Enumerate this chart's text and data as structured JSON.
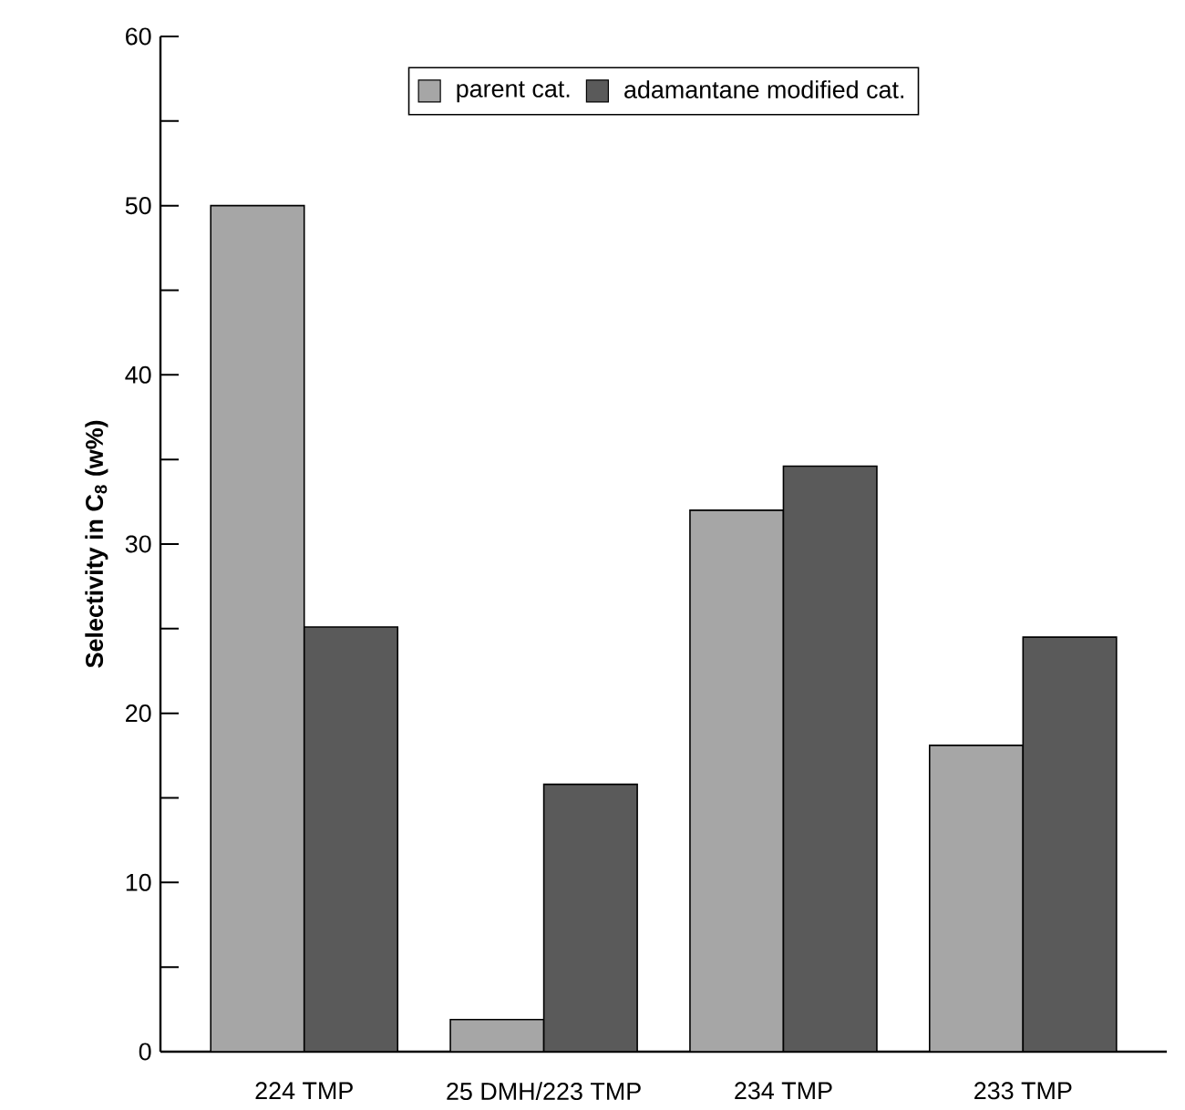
{
  "chart_data": {
    "type": "bar",
    "ylabel": "Selectivity in C$_{8}$ (w%)",
    "categories": [
      "224 TMP",
      "25 DMH/223 TMP",
      "234 TMP",
      "233 TMP"
    ],
    "series": [
      {
        "name": "parent cat.",
        "color": "#a6a6a6",
        "values": [
          50.0,
          1.9,
          32.0,
          18.1
        ]
      },
      {
        "name": "adamantane modified cat.",
        "color": "#5a5a5a",
        "values": [
          25.1,
          15.8,
          34.6,
          24.5
        ]
      }
    ],
    "ylim": [
      0,
      60
    ],
    "yticks": [
      0,
      {
        "value": 5,
        "label": null
      },
      10,
      {
        "value": 15,
        "label": null
      },
      20,
      {
        "value": 25,
        "label": null
      },
      30,
      {
        "value": 35,
        "label": null
      },
      40,
      {
        "value": 45,
        "label": null
      },
      50,
      {
        "value": 55,
        "label": null
      },
      60
    ],
    "grid": false,
    "legend": "top"
  }
}
